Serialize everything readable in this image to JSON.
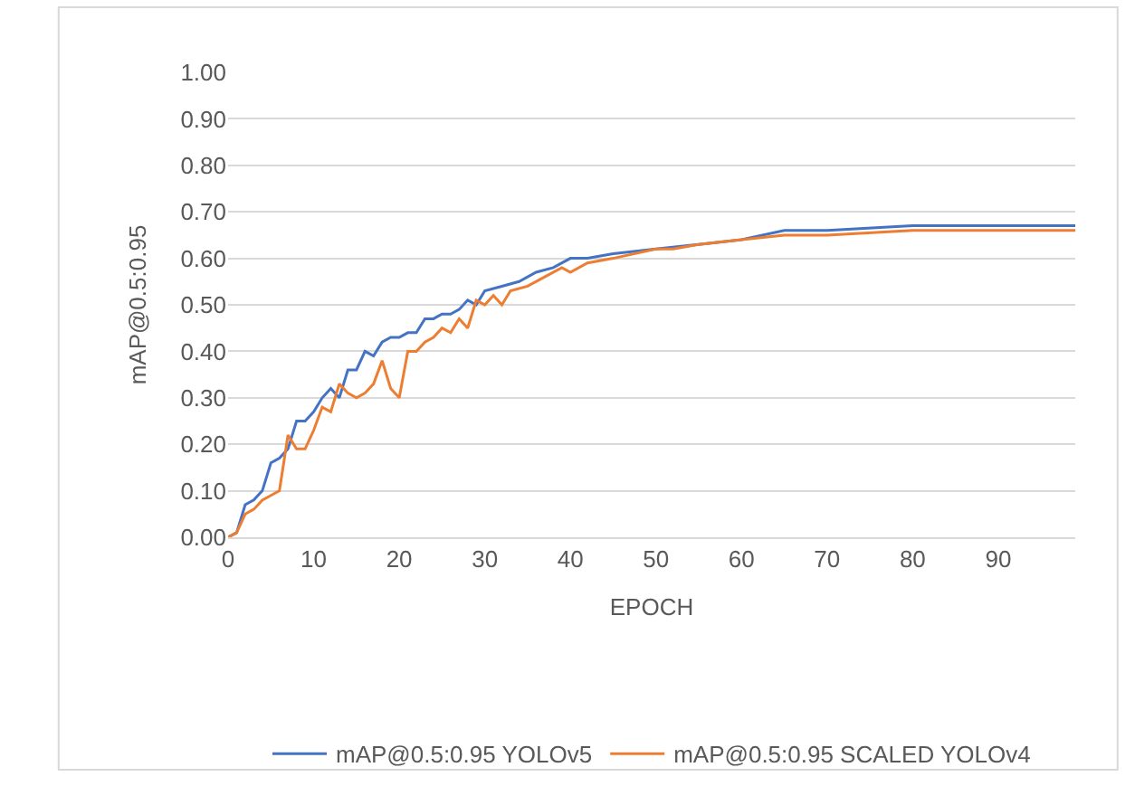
{
  "chart_data": {
    "type": "line",
    "xlabel": "EPOCH",
    "ylabel": "mAP@0.5:0.95",
    "xlim": [
      0,
      99
    ],
    "xticks": [
      0,
      10,
      20,
      30,
      40,
      50,
      60,
      70,
      80,
      90
    ],
    "ylim": [
      0,
      1
    ],
    "yticks": [
      {
        "value": 0,
        "label": "0.00"
      },
      {
        "value": 0.1,
        "label": "0.10"
      },
      {
        "value": 0.2,
        "label": "0.20"
      },
      {
        "value": 0.3,
        "label": "0.30"
      },
      {
        "value": 0.4,
        "label": "0.40"
      },
      {
        "value": 0.5,
        "label": "0.50"
      },
      {
        "value": 0.6,
        "label": "0.60"
      },
      {
        "value": 0.7,
        "label": "0.70"
      },
      {
        "value": 0.8,
        "label": "0.80"
      },
      {
        "value": 0.9,
        "label": "0.90"
      },
      {
        "value": 1,
        "label": "1.00"
      }
    ],
    "grid": "y",
    "legend": "bottom",
    "marker": "none",
    "line_style": "solid",
    "series": [
      {
        "name": "mAP@0.5:0.95 YOLOv5",
        "color": "#4472c4",
        "x": [
          0,
          1,
          2,
          3,
          4,
          5,
          6,
          7,
          8,
          9,
          10,
          11,
          12,
          13,
          14,
          15,
          16,
          17,
          18,
          19,
          20,
          21,
          22,
          23,
          24,
          25,
          26,
          27,
          28,
          29,
          30,
          32,
          34,
          36,
          38,
          40,
          42,
          45,
          50,
          55,
          60,
          65,
          70,
          80,
          90,
          99
        ],
        "values": [
          0,
          0.01,
          0.07,
          0.08,
          0.1,
          0.16,
          0.17,
          0.19,
          0.25,
          0.25,
          0.27,
          0.3,
          0.32,
          0.3,
          0.36,
          0.36,
          0.4,
          0.39,
          0.42,
          0.43,
          0.43,
          0.44,
          0.44,
          0.47,
          0.47,
          0.48,
          0.48,
          0.49,
          0.51,
          0.5,
          0.53,
          0.54,
          0.55,
          0.57,
          0.58,
          0.6,
          0.6,
          0.61,
          0.62,
          0.63,
          0.64,
          0.66,
          0.66,
          0.67,
          0.67,
          0.67
        ]
      },
      {
        "name": "mAP@0.5:0.95 SCALED YOLOv4",
        "color": "#ed7d31",
        "x": [
          0,
          1,
          2,
          3,
          4,
          5,
          6,
          7,
          8,
          9,
          10,
          11,
          12,
          13,
          14,
          15,
          16,
          17,
          18,
          19,
          20,
          21,
          22,
          23,
          24,
          25,
          26,
          27,
          28,
          29,
          30,
          31,
          32,
          33,
          35,
          37,
          39,
          40,
          42,
          45,
          50,
          52,
          55,
          60,
          65,
          70,
          80,
          90,
          99
        ],
        "values": [
          0,
          0.01,
          0.05,
          0.06,
          0.08,
          0.09,
          0.1,
          0.22,
          0.19,
          0.19,
          0.23,
          0.28,
          0.27,
          0.33,
          0.31,
          0.3,
          0.31,
          0.33,
          0.38,
          0.32,
          0.3,
          0.4,
          0.4,
          0.42,
          0.43,
          0.45,
          0.44,
          0.47,
          0.45,
          0.51,
          0.5,
          0.52,
          0.5,
          0.53,
          0.54,
          0.56,
          0.58,
          0.57,
          0.59,
          0.6,
          0.62,
          0.62,
          0.63,
          0.64,
          0.65,
          0.65,
          0.66,
          0.66,
          0.66
        ]
      }
    ]
  }
}
